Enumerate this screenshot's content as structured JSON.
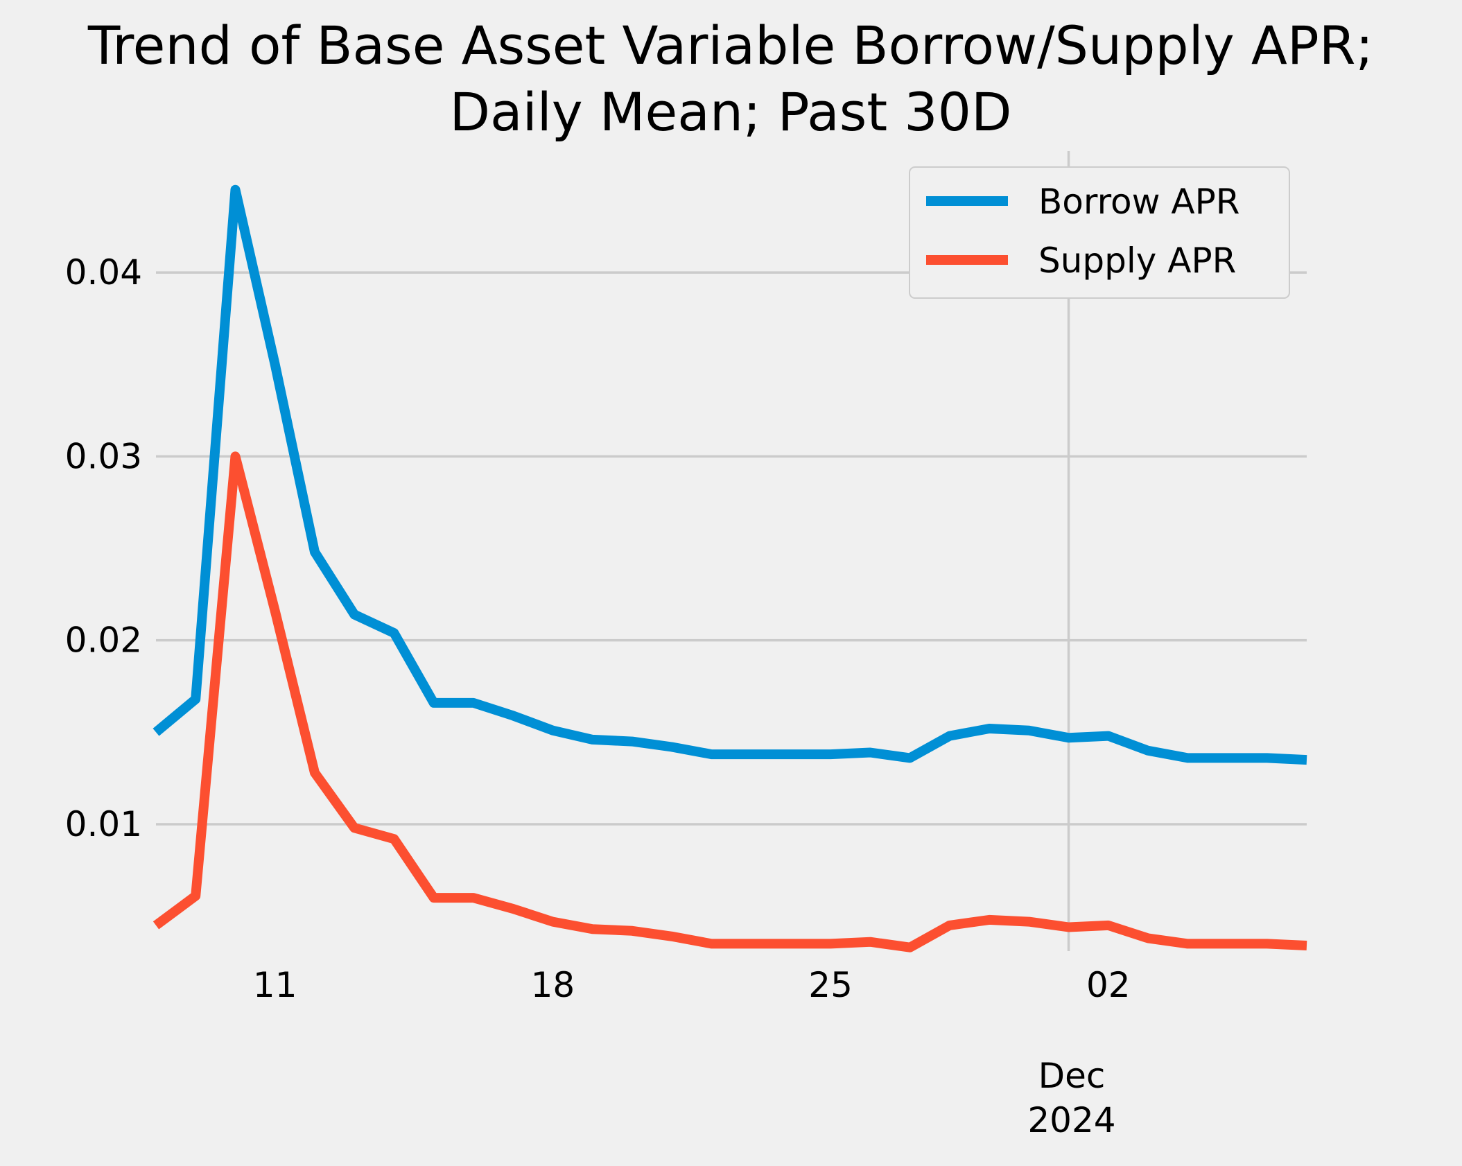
{
  "chart_data": {
    "type": "line",
    "title": [
      "Trend of Base Asset Variable Borrow/Supply APR;",
      "Daily Mean; Past 30D"
    ],
    "xlabel": "",
    "ylabel": "",
    "x": [
      "2024-11-08",
      "2024-11-09",
      "2024-11-10",
      "2024-11-11",
      "2024-11-12",
      "2024-11-13",
      "2024-11-14",
      "2024-11-15",
      "2024-11-16",
      "2024-11-17",
      "2024-11-18",
      "2024-11-19",
      "2024-11-20",
      "2024-11-21",
      "2024-11-22",
      "2024-11-23",
      "2024-11-24",
      "2024-11-25",
      "2024-11-26",
      "2024-11-27",
      "2024-11-28",
      "2024-11-29",
      "2024-11-30",
      "2024-12-01",
      "2024-12-02",
      "2024-12-03",
      "2024-12-04",
      "2024-12-05",
      "2024-12-06",
      "2024-12-07"
    ],
    "series": [
      {
        "name": "Borrow APR",
        "color": "#008fd5",
        "values": [
          0.015,
          0.0168,
          0.0445,
          0.035,
          0.0248,
          0.0214,
          0.0204,
          0.0166,
          0.0166,
          0.0159,
          0.0151,
          0.0146,
          0.0145,
          0.0142,
          0.0138,
          0.0138,
          0.0138,
          0.0138,
          0.0139,
          0.0136,
          0.0148,
          0.0152,
          0.0151,
          0.0147,
          0.0148,
          0.014,
          0.0136,
          0.0136,
          0.0136,
          0.0135
        ]
      },
      {
        "name": "Supply APR",
        "color": "#fc4f30",
        "values": [
          0.0045,
          0.0061,
          0.03,
          0.0216,
          0.0128,
          0.0098,
          0.0092,
          0.006,
          0.006,
          0.0054,
          0.0047,
          0.0043,
          0.0042,
          0.0039,
          0.0035,
          0.0035,
          0.0035,
          0.0035,
          0.0036,
          0.0033,
          0.0045,
          0.0048,
          0.0047,
          0.0044,
          0.0045,
          0.0038,
          0.0035,
          0.0035,
          0.0035,
          0.0034
        ]
      }
    ],
    "xlim": [
      "2024-11-08",
      "2024-12-07"
    ],
    "ylim": [
      0.0031,
      0.0466
    ],
    "yticks": [
      0.01,
      0.02,
      0.03,
      0.04
    ],
    "ytick_labels": [
      "0.01",
      "0.02",
      "0.03",
      "0.04"
    ],
    "xticks": [
      "2024-11-11",
      "2024-11-18",
      "2024-11-25",
      "2024-12-02"
    ],
    "xtick_labels": [
      "11",
      "18",
      "25",
      "02"
    ],
    "x_secondary_label": [
      "Dec",
      "2024"
    ],
    "y_grid": true,
    "x_grid_at": [
      "2024-12-01"
    ],
    "legend_placement": "top-right"
  }
}
